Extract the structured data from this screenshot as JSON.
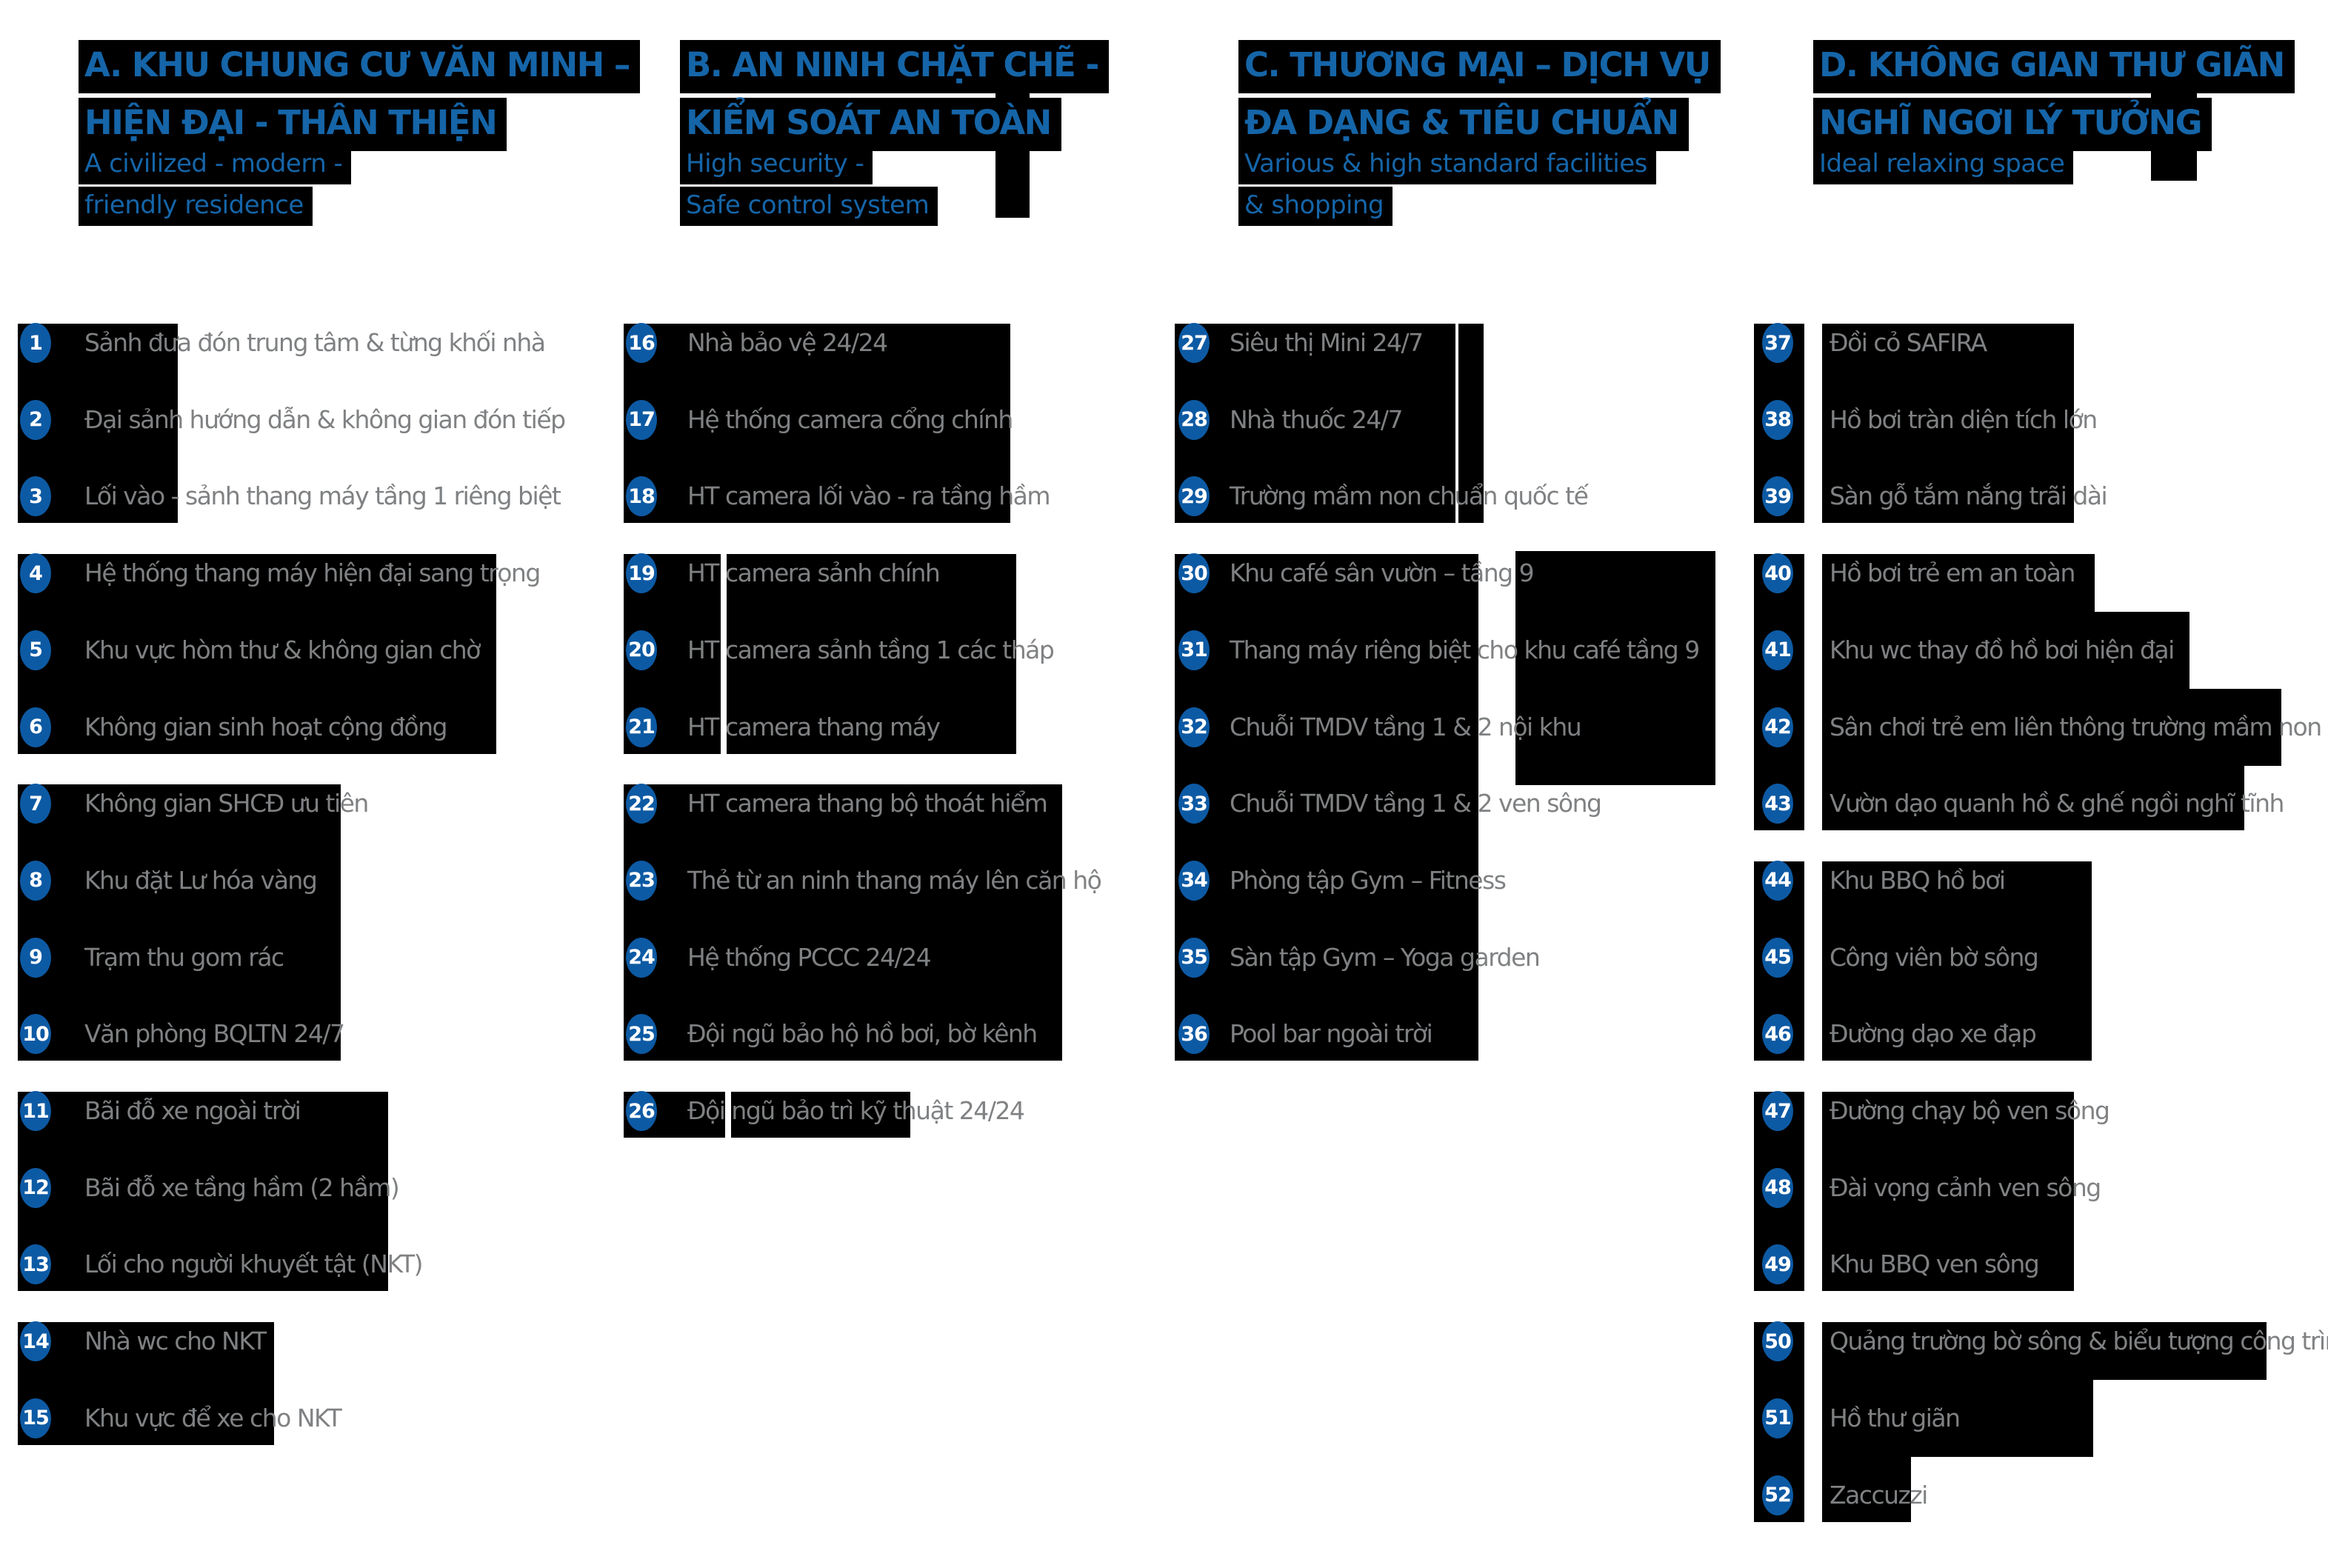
{
  "colors": {
    "title_blue": "#1565a8",
    "badge_blue": "#0d5aa4",
    "item_gray": "#7f8183",
    "highlight_black": "#000000",
    "background": "#ffffff"
  },
  "sections": [
    {
      "letter": "A",
      "title_lines": [
        "A. KHU CHUNG CƯ VĂN MINH –",
        "HIỆN ĐẠI - THÂN THIỆN"
      ],
      "subtitle_lines": [
        "A civilized - modern -",
        "friendly residence"
      ],
      "items": [
        {
          "num": 1,
          "label": "Sảnh đưa đón trung tâm & từng khối nhà"
        },
        {
          "num": 2,
          "label": "Đại sảnh hướng dẫn & không gian đón tiếp"
        },
        {
          "num": 3,
          "label": "Lối vào - sảnh thang máy tầng 1 riêng biệt"
        },
        {
          "num": 4,
          "label": "Hệ thống thang máy hiện đại sang trọng"
        },
        {
          "num": 5,
          "label": "Khu vực hòm thư & không gian chờ"
        },
        {
          "num": 6,
          "label": "Không gian sinh hoạt cộng đồng"
        },
        {
          "num": 7,
          "label": "Không gian SHCĐ ưu tiên"
        },
        {
          "num": 8,
          "label": "Khu đặt Lư hóa vàng"
        },
        {
          "num": 9,
          "label": "Trạm thu gom rác"
        },
        {
          "num": 10,
          "label": "Văn phòng BQLTN 24/7"
        },
        {
          "num": 11,
          "label": "Bãi đỗ xe ngoài trời"
        },
        {
          "num": 12,
          "label": "Bãi đỗ xe tầng hầm (2 hầm)"
        },
        {
          "num": 13,
          "label": "Lối cho người khuyết tật (NKT)"
        },
        {
          "num": 14,
          "label": "Nhà wc cho NKT"
        },
        {
          "num": 15,
          "label": "Khu vực để xe cho NKT"
        }
      ]
    },
    {
      "letter": "B",
      "title_lines": [
        "B. AN NINH CHẶT CHẼ -",
        "KIỂM SOÁT AN TOÀN"
      ],
      "subtitle_lines": [
        "High security -",
        "Safe control system"
      ],
      "items": [
        {
          "num": 16,
          "label": "Nhà bảo vệ 24/24"
        },
        {
          "num": 17,
          "label": "Hệ thống camera cổng chính"
        },
        {
          "num": 18,
          "label": "HT camera lối vào - ra tầng hầm"
        },
        {
          "num": 19,
          "label": "HT camera sảnh chính"
        },
        {
          "num": 20,
          "label": "HT camera sảnh tầng 1 các tháp"
        },
        {
          "num": 21,
          "label": "HT camera thang máy"
        },
        {
          "num": 22,
          "label": "HT camera thang bộ thoát hiểm"
        },
        {
          "num": 23,
          "label": "Thẻ từ an ninh thang máy lên căn hộ"
        },
        {
          "num": 24,
          "label": "Hệ thống PCCC 24/24"
        },
        {
          "num": 25,
          "label": "Đội ngũ bảo hộ hồ bơi, bờ kênh"
        },
        {
          "num": 26,
          "label": "Đội ngũ bảo trì kỹ thuật 24/24"
        }
      ]
    },
    {
      "letter": "C",
      "title_lines": [
        "C. THƯƠNG MẠI – DỊCH VỤ",
        "ĐA DẠNG & TIÊU CHUẨN"
      ],
      "subtitle_lines": [
        "Various & high standard facilities",
        "& shopping"
      ],
      "items": [
        {
          "num": 27,
          "label": "Siêu thị Mini 24/7"
        },
        {
          "num": 28,
          "label": "Nhà thuốc 24/7"
        },
        {
          "num": 29,
          "label": "Trường mầm non chuẩn quốc tế"
        },
        {
          "num": 30,
          "label": "Khu café sân vườn – tầng 9"
        },
        {
          "num": 31,
          "label": "Thang máy riêng biệt cho khu café tầng 9"
        },
        {
          "num": 32,
          "label": "Chuỗi TMDV tầng 1 & 2 nội khu"
        },
        {
          "num": 33,
          "label": "Chuỗi TMDV tầng 1 & 2 ven sông"
        },
        {
          "num": 34,
          "label": "Phòng tập Gym – Fitness"
        },
        {
          "num": 35,
          "label": "Sàn tập Gym – Yoga garden"
        },
        {
          "num": 36,
          "label": "Pool bar ngoài trời"
        }
      ]
    },
    {
      "letter": "D",
      "title_lines": [
        "D. KHÔNG GIAN THƯ GIÃN",
        "NGHĨ NGƠI LÝ TƯỞNG"
      ],
      "subtitle_lines": [
        "Ideal relaxing space"
      ],
      "items": [
        {
          "num": 37,
          "label": "Đồi cỏ SAFIRA"
        },
        {
          "num": 38,
          "label": "Hồ bơi tràn diện tích lớn"
        },
        {
          "num": 39,
          "label": "Sàn gỗ tắm nắng trãi dài"
        },
        {
          "num": 40,
          "label": "Hồ bơi trẻ em an toàn"
        },
        {
          "num": 41,
          "label": "Khu wc thay đồ hồ bơi hiện đại"
        },
        {
          "num": 42,
          "label": "Sân chơi trẻ em liên thông trường mầm non"
        },
        {
          "num": 43,
          "label": "Vườn dạo quanh hồ & ghế ngồi nghĩ tĩnh"
        },
        {
          "num": 44,
          "label": "Khu BBQ hồ bơi"
        },
        {
          "num": 45,
          "label": "Công viên bờ sông"
        },
        {
          "num": 46,
          "label": "Đường dạo xe đạp"
        },
        {
          "num": 47,
          "label": "Đường chạy bộ ven sông"
        },
        {
          "num": 48,
          "label": "Đài vọng cảnh ven sông"
        },
        {
          "num": 49,
          "label": "Khu BBQ ven sông"
        },
        {
          "num": 50,
          "label": "Quảng trường bờ sông & biểu tượng công trình"
        },
        {
          "num": 51,
          "label": "Hồ thư giãn"
        },
        {
          "num": 52,
          "label": "Zaccuzzi"
        }
      ]
    }
  ]
}
